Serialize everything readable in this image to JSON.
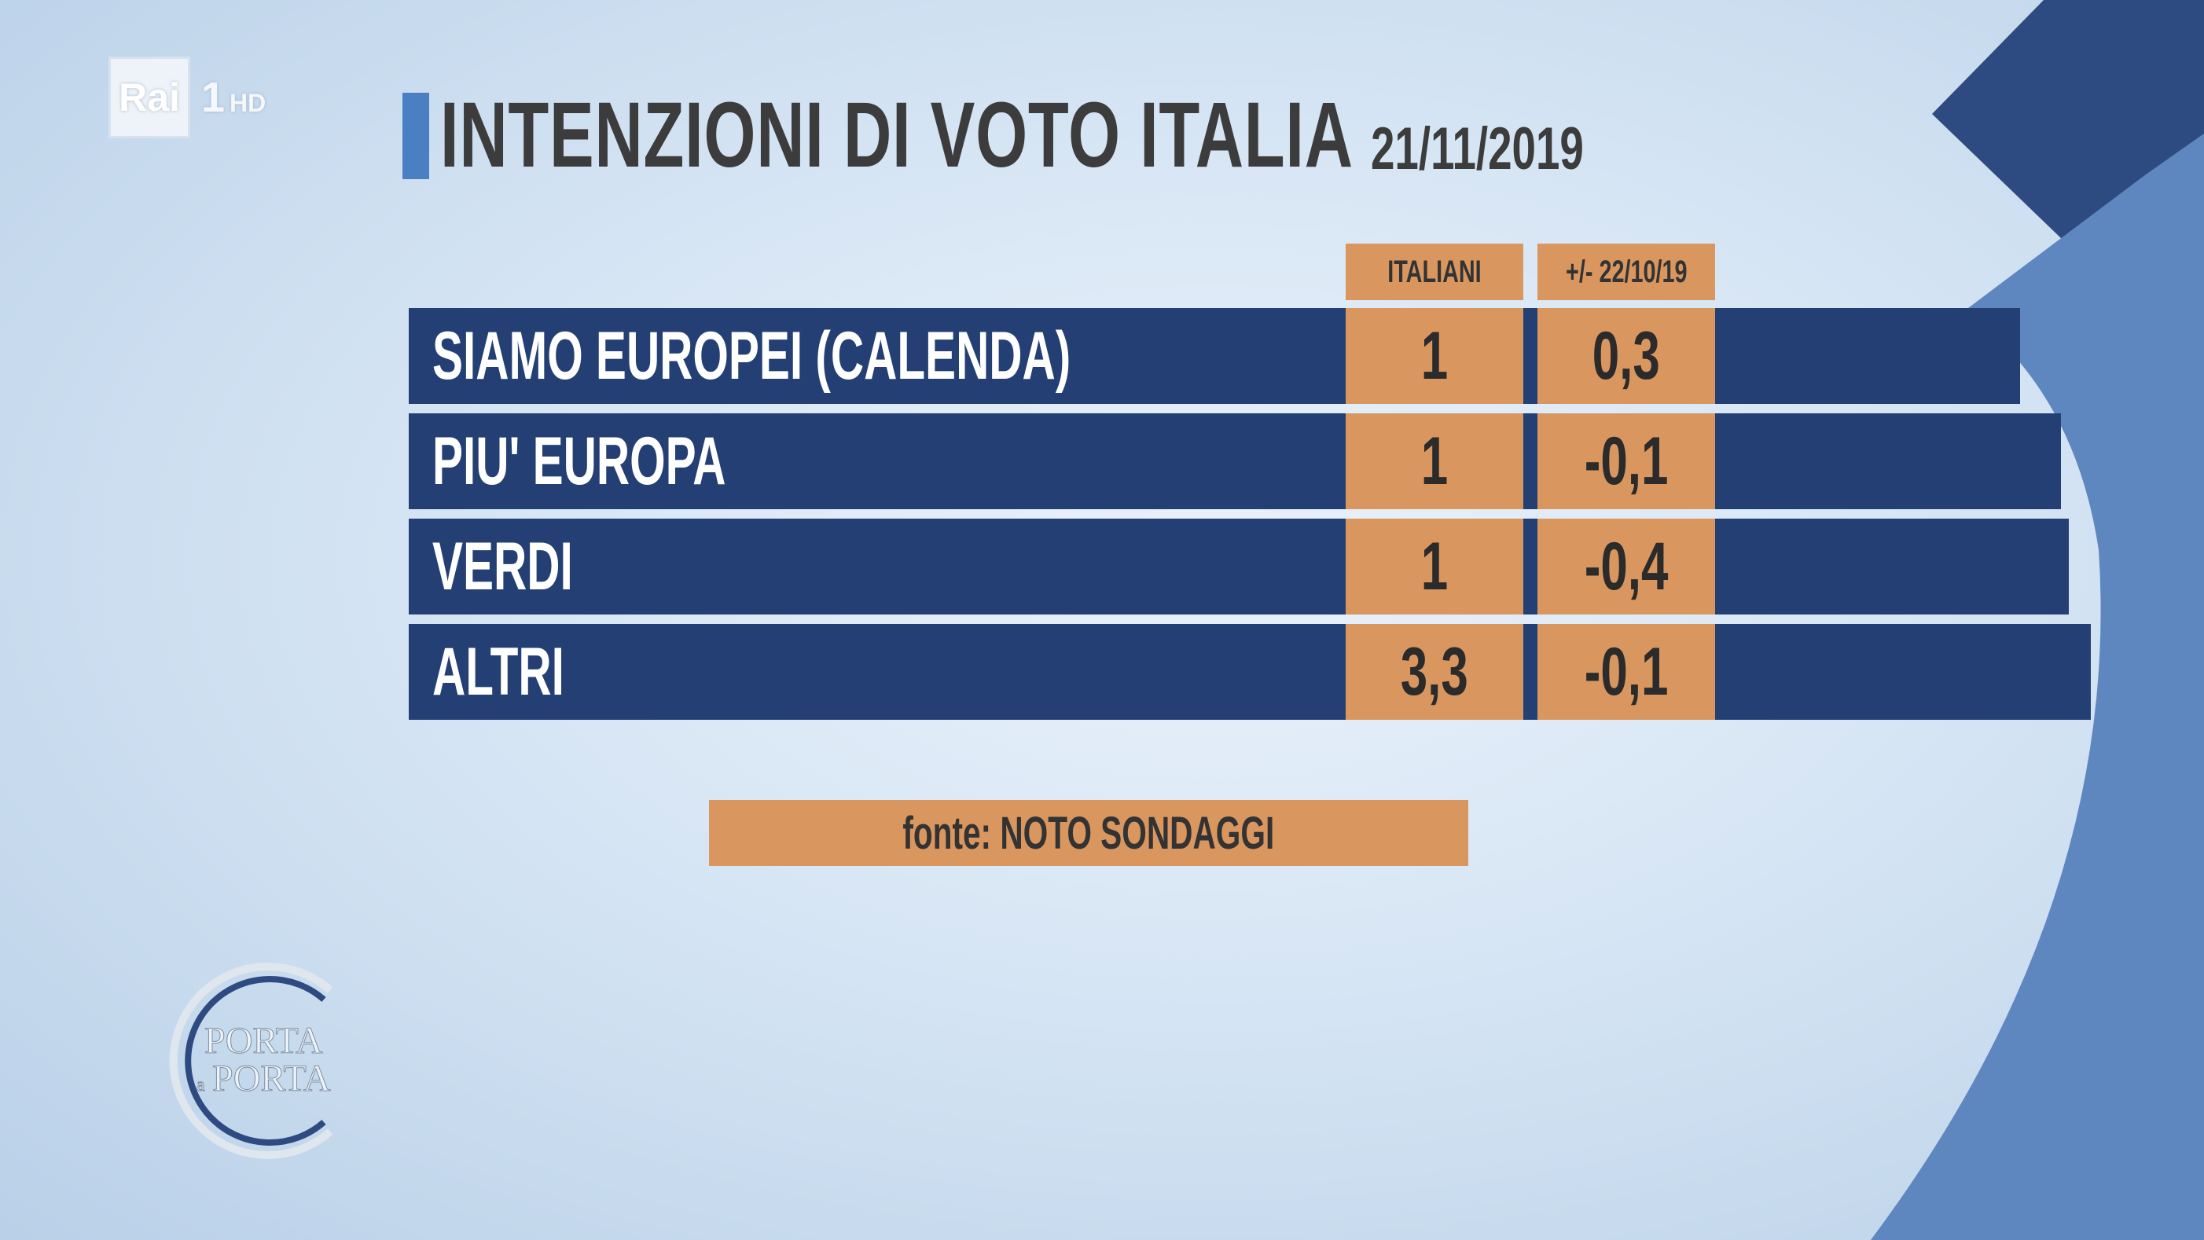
{
  "channel": {
    "brand": "Rai",
    "number": "1",
    "quality": "HD"
  },
  "title": "INTENZIONI DI VOTO ITALIA",
  "date": "21/11/2019",
  "show_logo": {
    "line1": "PORTA",
    "connector": "a",
    "line2": "PORTA"
  },
  "table": {
    "headers": [
      "ITALIANI",
      "+/- 22/10/19"
    ],
    "rows": [
      {
        "label": "SIAMO EUROPEI (CALENDA)",
        "value": "1",
        "change": "0,3"
      },
      {
        "label": "PIU' EUROPA",
        "value": "1",
        "change": "-0,1"
      },
      {
        "label": "VERDI",
        "value": "1",
        "change": "-0,4"
      },
      {
        "label": "ALTRI",
        "value": "3,3",
        "change": "-0,1"
      }
    ]
  },
  "source": "fonte: NOTO SONDAGGI",
  "colors": {
    "row_bg": "#243f73",
    "cell_bg": "#d9975f",
    "title_accent": "#4a7fc1",
    "deco_dark": "#2d4b80",
    "deco_light": "#5e86bf"
  },
  "chart_data": {
    "type": "table",
    "title": "INTENZIONI DI VOTO ITALIA",
    "subtitle": "21/11/2019",
    "columns": [
      "ITALIANI",
      "+/- 22/10/19"
    ],
    "categories": [
      "SIAMO EUROPEI (CALENDA)",
      "PIU' EUROPA",
      "VERDI",
      "ALTRI"
    ],
    "series": [
      {
        "name": "ITALIANI",
        "values": [
          1,
          1,
          1,
          3.3
        ]
      },
      {
        "name": "+/- 22/10/19",
        "values": [
          0.3,
          -0.1,
          -0.4,
          -0.1
        ]
      }
    ],
    "source": "fonte: NOTO SONDAGGI"
  }
}
